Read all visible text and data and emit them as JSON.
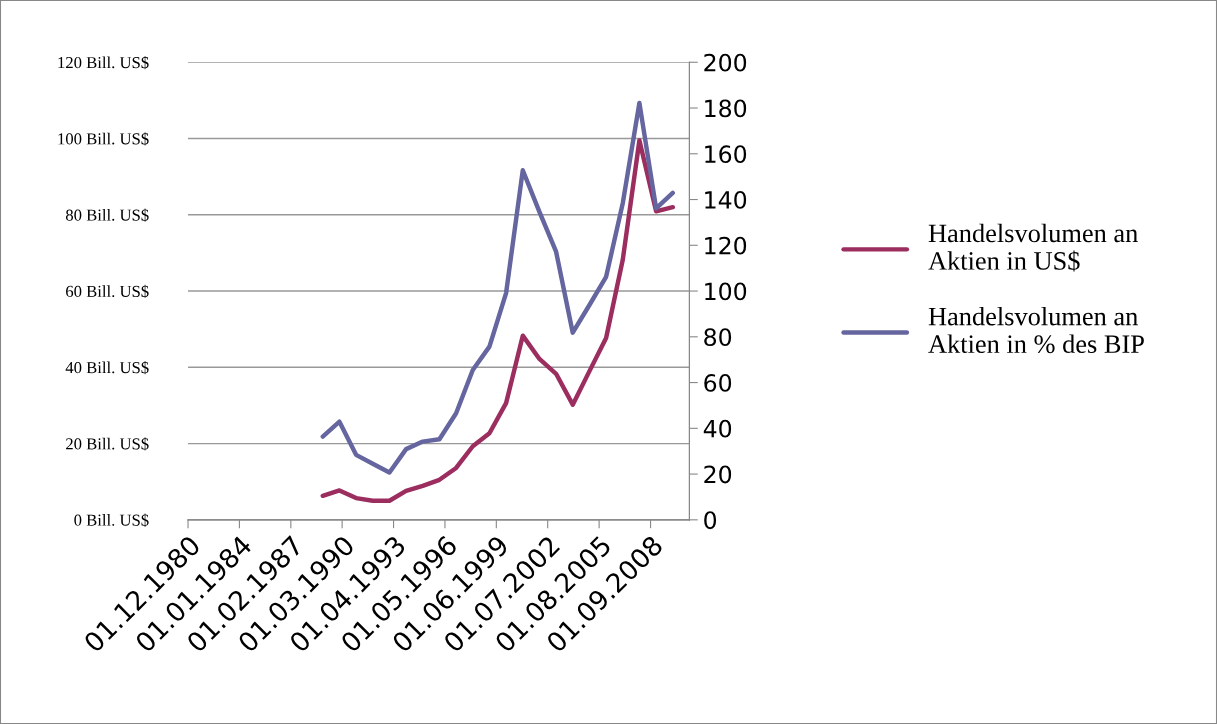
{
  "chart_data": {
    "type": "line",
    "x": [
      "1989",
      "1990",
      "1991",
      "1992",
      "1993",
      "1994",
      "1995",
      "1996",
      "1997",
      "1998",
      "1999",
      "2000",
      "2001",
      "2002",
      "2003",
      "2004",
      "2005",
      "2006",
      "2007",
      "2008",
      "2009",
      "2010"
    ],
    "series": [
      {
        "name": "Handelsvolumen an\nAktien in US$",
        "color": "#9b2d5f",
        "values": [
          6.3,
          7.7,
          5.7,
          5.0,
          5.0,
          7.6,
          8.9,
          10.5,
          13.6,
          19.3,
          22.7,
          30.6,
          48.3,
          42.2,
          38.3,
          30.2,
          39.0,
          47.7,
          68.2,
          99.5,
          80.9,
          82.0
        ]
      },
      {
        "name": "Handelsvolumen an\nAktien in % des BIP",
        "color": "#65659f",
        "axis": "y2",
        "values": [
          36.4,
          42.9,
          28.4,
          24.5,
          20.7,
          30.9,
          34.2,
          35.2,
          46.6,
          65.5,
          75.7,
          99.1,
          152.8,
          134.6,
          117.2,
          81.8,
          93.9,
          106.2,
          138.4,
          182.2,
          136.1,
          142.9
        ]
      }
    ],
    "xlim": [
      "1980-12-01",
      "2011-01-01"
    ],
    "xticks": [
      {
        "value": "1980-12-01",
        "label": "01.12.1980"
      },
      {
        "value": "1984-01-01",
        "label": "01.01.1984"
      },
      {
        "value": "1987-02-01",
        "label": "01.02.1987"
      },
      {
        "value": "1990-03-01",
        "label": "01.03.1990"
      },
      {
        "value": "1993-04-01",
        "label": "01.04.1993"
      },
      {
        "value": "1996-05-01",
        "label": "01.05.1996"
      },
      {
        "value": "1999-06-01",
        "label": "01.06.1999"
      },
      {
        "value": "2002-07-01",
        "label": "01.07.2002"
      },
      {
        "value": "2005-08-01",
        "label": "01.08.2005"
      },
      {
        "value": "2008-09-01",
        "label": "01.09.2008"
      }
    ],
    "ylim": [
      0,
      120
    ],
    "yticks": [
      {
        "value": 0,
        "label": "0 Bill. US$"
      },
      {
        "value": 20,
        "label": "20 Bill. US$"
      },
      {
        "value": 40,
        "label": "40 Bill. US$"
      },
      {
        "value": 60,
        "label": "60 Bill. US$"
      },
      {
        "value": 80,
        "label": "80 Bill. US$"
      },
      {
        "value": 100,
        "label": "100 Bill. US$"
      },
      {
        "value": 120,
        "label": "120 Bill. US$"
      }
    ],
    "y2lim": [
      0,
      200
    ],
    "y2ticks": [
      0,
      20,
      40,
      60,
      80,
      100,
      120,
      140,
      160,
      180,
      200
    ],
    "grid": "y",
    "legend": "right",
    "marker": "none",
    "line_style": "solid"
  }
}
